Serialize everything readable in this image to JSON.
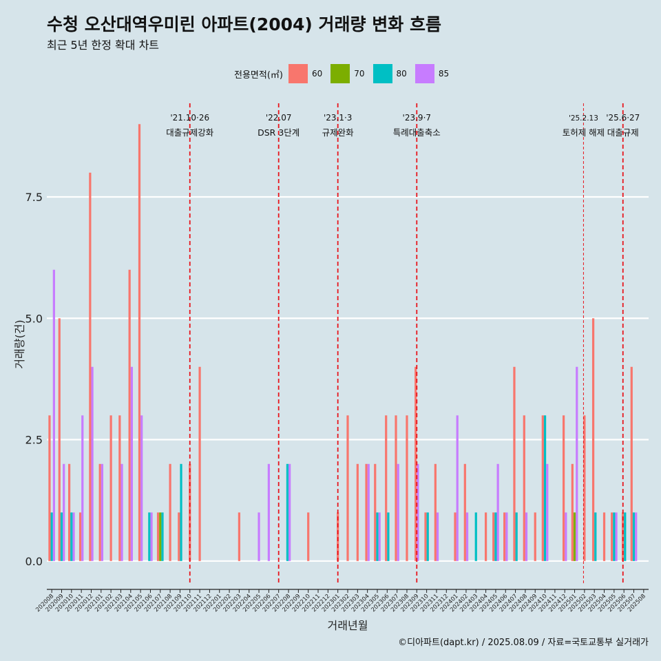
{
  "title": "수청 오산대역우미린 아파트(2004) 거래량 변화 흐름",
  "subtitle": "최근 5년 한정 확대 차트",
  "caption": "©디아파트(dapt.kr) / 2025.08.09 / 자료=국토교통부 실거래가",
  "colors": {
    "background": "#d6e4ea",
    "grid": "#ffffff",
    "event_line": "#e8141b"
  },
  "chart_data": {
    "type": "bar",
    "xlabel": "거래년월",
    "ylabel": "거래량(건)",
    "ylim": [
      -0.4,
      9.5
    ],
    "yticks": [
      0.0,
      2.5,
      5.0,
      7.5
    ],
    "ytick_labels": [
      "0.0",
      "2.5",
      "5.0",
      "7.5"
    ],
    "legend_title": "전용면적(㎡)",
    "legend_position": "top",
    "series": [
      {
        "name": "60",
        "color": "#f8766d"
      },
      {
        "name": "70",
        "color": "#7cae00"
      },
      {
        "name": "80",
        "color": "#00bfc4"
      },
      {
        "name": "85",
        "color": "#c77cff"
      }
    ],
    "months": [
      "202008",
      "202009",
      "202010",
      "202011",
      "202012",
      "202101",
      "202102",
      "202103",
      "202104",
      "202105",
      "202106",
      "202107",
      "202108",
      "202109",
      "202110",
      "202111",
      "202112",
      "202201",
      "202202",
      "202203",
      "202204",
      "202205",
      "202206",
      "202207",
      "202208",
      "202209",
      "202210",
      "202211",
      "202212",
      "202301",
      "202302",
      "202303",
      "202304",
      "202305",
      "202306",
      "202307",
      "202308",
      "202309",
      "202310",
      "202311",
      "202312",
      "202401",
      "202402",
      "202403",
      "202404",
      "202405",
      "202406",
      "202407",
      "202408",
      "202409",
      "202410",
      "202411",
      "202412",
      "202501",
      "202502",
      "202503",
      "202504",
      "202505",
      "202506",
      "202507",
      "202508"
    ],
    "data": [
      {
        "month": "202008",
        "values": {
          "60": 3,
          "80": 1,
          "85": 6
        }
      },
      {
        "month": "202009",
        "values": {
          "60": 5,
          "80": 1,
          "85": 2
        }
      },
      {
        "month": "202010",
        "values": {
          "60": 2,
          "80": 1,
          "85": 1
        }
      },
      {
        "month": "202011",
        "values": {
          "60": 1,
          "85": 3
        }
      },
      {
        "month": "202012",
        "values": {
          "60": 8,
          "85": 4
        }
      },
      {
        "month": "202101",
        "values": {
          "60": 2,
          "85": 2
        }
      },
      {
        "month": "202102",
        "values": {
          "60": 3
        }
      },
      {
        "month": "202103",
        "values": {
          "60": 3,
          "85": 2
        }
      },
      {
        "month": "202104",
        "values": {
          "60": 6,
          "85": 4
        }
      },
      {
        "month": "202105",
        "values": {
          "60": 9,
          "85": 3
        }
      },
      {
        "month": "202106",
        "values": {
          "80": 1,
          "85": 1
        }
      },
      {
        "month": "202107",
        "values": {
          "60": 1,
          "70": 1,
          "80": 1
        }
      },
      {
        "month": "202108",
        "values": {
          "60": 2
        }
      },
      {
        "month": "202109",
        "values": {
          "60": 1,
          "80": 2
        }
      },
      {
        "month": "202110",
        "values": {
          "60": 2
        }
      },
      {
        "month": "202111",
        "values": {
          "60": 4
        }
      },
      {
        "month": "202112",
        "values": {}
      },
      {
        "month": "202201",
        "values": {}
      },
      {
        "month": "202202",
        "values": {}
      },
      {
        "month": "202203",
        "values": {
          "60": 1
        }
      },
      {
        "month": "202204",
        "values": {}
      },
      {
        "month": "202205",
        "values": {
          "85": 1
        }
      },
      {
        "month": "202206",
        "values": {
          "85": 2
        }
      },
      {
        "month": "202207",
        "values": {}
      },
      {
        "month": "202208",
        "values": {
          "80": 2,
          "85": 2
        }
      },
      {
        "month": "202209",
        "values": {}
      },
      {
        "month": "202210",
        "values": {
          "60": 1
        }
      },
      {
        "month": "202211",
        "values": {}
      },
      {
        "month": "202212",
        "values": {}
      },
      {
        "month": "202301",
        "values": {
          "60": 1
        }
      },
      {
        "month": "202302",
        "values": {
          "60": 3
        }
      },
      {
        "month": "202303",
        "values": {
          "60": 2
        }
      },
      {
        "month": "202304",
        "values": {
          "60": 2,
          "85": 2
        }
      },
      {
        "month": "202305",
        "values": {
          "60": 2,
          "80": 1,
          "85": 1
        }
      },
      {
        "month": "202306",
        "values": {
          "60": 3,
          "80": 1
        }
      },
      {
        "month": "202307",
        "values": {
          "60": 3,
          "85": 2
        }
      },
      {
        "month": "202308",
        "values": {
          "60": 3
        }
      },
      {
        "month": "202309",
        "values": {
          "60": 4,
          "85": 2
        }
      },
      {
        "month": "202310",
        "values": {
          "60": 1,
          "80": 1
        }
      },
      {
        "month": "202311",
        "values": {
          "60": 2,
          "85": 1
        }
      },
      {
        "month": "202312",
        "values": {}
      },
      {
        "month": "202401",
        "values": {
          "60": 1,
          "85": 3
        }
      },
      {
        "month": "202402",
        "values": {
          "60": 2,
          "85": 1
        }
      },
      {
        "month": "202403",
        "values": {
          "80": 1
        }
      },
      {
        "month": "202404",
        "values": {
          "60": 1
        }
      },
      {
        "month": "202405",
        "values": {
          "60": 1,
          "80": 1,
          "85": 2
        }
      },
      {
        "month": "202406",
        "values": {
          "60": 1,
          "85": 1
        }
      },
      {
        "month": "202407",
        "values": {
          "60": 4,
          "80": 1
        }
      },
      {
        "month": "202408",
        "values": {
          "60": 3,
          "85": 1
        }
      },
      {
        "month": "202409",
        "values": {
          "60": 1
        }
      },
      {
        "month": "202410",
        "values": {
          "60": 3,
          "80": 3,
          "85": 2
        }
      },
      {
        "month": "202411",
        "values": {}
      },
      {
        "month": "202412",
        "values": {
          "60": 3,
          "85": 1
        }
      },
      {
        "month": "202501",
        "values": {
          "60": 2,
          "70": 1,
          "85": 4
        }
      },
      {
        "month": "202502",
        "values": {
          "60": 3
        }
      },
      {
        "month": "202503",
        "values": {
          "60": 5,
          "80": 1
        }
      },
      {
        "month": "202504",
        "values": {
          "60": 1
        }
      },
      {
        "month": "202505",
        "values": {
          "60": 1,
          "80": 1,
          "85": 1
        }
      },
      {
        "month": "202506",
        "values": {
          "60": 1,
          "80": 1
        }
      },
      {
        "month": "202507",
        "values": {
          "60": 4,
          "80": 1,
          "85": 1
        }
      },
      {
        "month": "202508",
        "values": {}
      }
    ],
    "events": [
      {
        "month_index": 14.5,
        "date": "'21.10·26",
        "label": "대출규제강화",
        "style": "dashed"
      },
      {
        "month_index": 23.5,
        "date": "'22.07",
        "label": "DSR 3단계",
        "style": "dashed"
      },
      {
        "month_index": 29.5,
        "date": "'23.1·3",
        "label": "규제완화",
        "style": "dashed"
      },
      {
        "month_index": 37.5,
        "date": "'23.9·7",
        "label": "특례대출축소",
        "style": "dashed"
      },
      {
        "month_index": 54.4,
        "date": "'25.2.13",
        "label": "토허제 해제",
        "style": "thin"
      },
      {
        "month_index": 58.4,
        "date": "'25.6·27",
        "label": "대출규제",
        "style": "dashed"
      }
    ]
  }
}
